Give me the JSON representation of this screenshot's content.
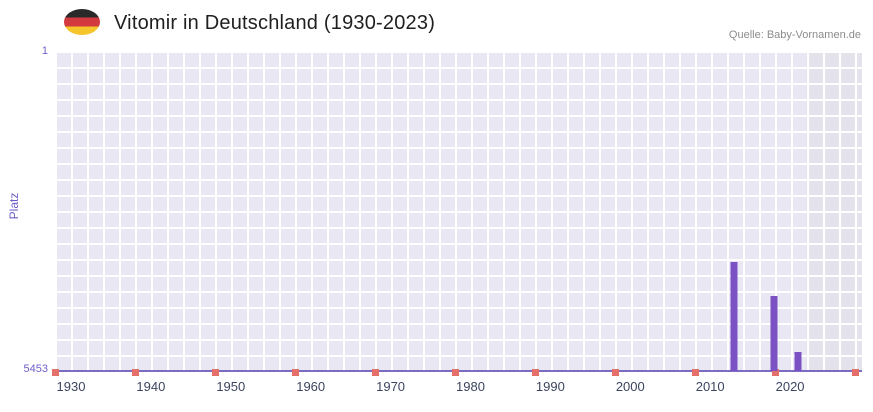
{
  "header": {
    "title": "Vitomir in Deutschland (1930-2023)",
    "source": "Quelle: Baby-Vornamen.de",
    "flag_icon": "german-flag"
  },
  "colors": {
    "plot_bg": "#e9e7f4",
    "band_bg": "#e4e3eb",
    "grid_line": "#ffffff",
    "bar": "#7a52c4",
    "tick_mark": "#e4706c",
    "axis_line": "#7d6bc2",
    "axis_text": "#6c5fc7",
    "year_text": "#3b455f"
  },
  "chart_data": {
    "type": "bar",
    "title": "Vitomir in Deutschland (1930-2023)",
    "xlabel": "",
    "ylabel": "Platz",
    "y_axis": {
      "min": 1,
      "max": 5453,
      "inverted": true,
      "top_tick": "1",
      "bottom_tick": "5453"
    },
    "x_axis": {
      "range": [
        1928,
        2029
      ],
      "ticks": [
        1930,
        1940,
        1950,
        1960,
        1970,
        1980,
        1990,
        2000,
        2010,
        2020
      ],
      "red_tick_marks": {
        "spacing_px": 80,
        "count": 11
      }
    },
    "bars": [
      {
        "year": 2013,
        "rank": 3600
      },
      {
        "year": 2018,
        "rank": 4180
      },
      {
        "year": 2021,
        "rank": 5130
      }
    ],
    "highlight_band": {
      "start_year": 2022,
      "end_year": 2029
    },
    "legend": null,
    "grid": true
  }
}
